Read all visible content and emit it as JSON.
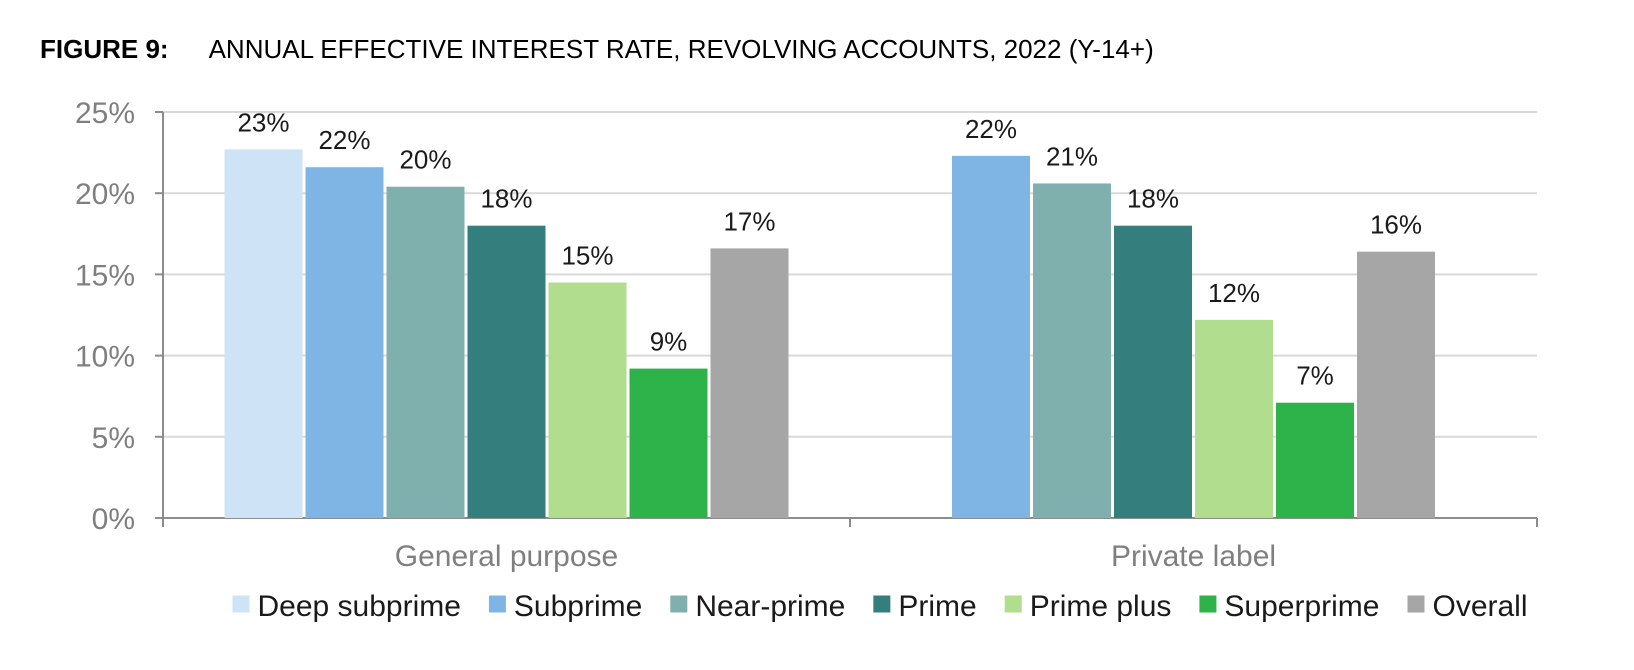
{
  "figure": {
    "label": "FIGURE 9:",
    "title": "ANNUAL EFFECTIVE INTEREST RATE, REVOLVING ACCOUNTS, 2022 (Y-14+)"
  },
  "chart_data": {
    "type": "bar",
    "title": "ANNUAL EFFECTIVE INTEREST RATE, REVOLVING ACCOUNTS, 2022 (Y-14+)",
    "categories": [
      "General purpose",
      "Private label"
    ],
    "ylim": [
      0,
      25
    ],
    "yticks": [
      0,
      5,
      10,
      15,
      20,
      25
    ],
    "ytick_labels": [
      "0%",
      "5%",
      "10%",
      "15%",
      "20%",
      "25%"
    ],
    "grid": true,
    "legend_position": "bottom",
    "series": [
      {
        "name": "Deep subprime",
        "color": "#cfe3f6",
        "values": [
          22.7,
          null
        ],
        "labels": [
          "23%",
          ""
        ]
      },
      {
        "name": "Subprime",
        "color": "#7fb5e5",
        "values": [
          21.6,
          22.3
        ],
        "labels": [
          "22%",
          "22%"
        ]
      },
      {
        "name": "Near-prime",
        "color": "#80b0ae",
        "values": [
          20.4,
          20.6
        ],
        "labels": [
          "20%",
          "21%"
        ]
      },
      {
        "name": "Prime",
        "color": "#347f7d",
        "values": [
          18.0,
          18.0
        ],
        "labels": [
          "18%",
          "18%"
        ]
      },
      {
        "name": "Prime plus",
        "color": "#b1dd8f",
        "values": [
          14.5,
          12.2
        ],
        "labels": [
          "15%",
          "12%"
        ]
      },
      {
        "name": "Superprime",
        "color": "#2db34a",
        "values": [
          9.2,
          7.1
        ],
        "labels": [
          "9%",
          "7%"
        ]
      },
      {
        "name": "Overall",
        "color": "#a6a6a6",
        "values": [
          16.6,
          16.4
        ],
        "labels": [
          "17%",
          "16%"
        ]
      }
    ]
  }
}
